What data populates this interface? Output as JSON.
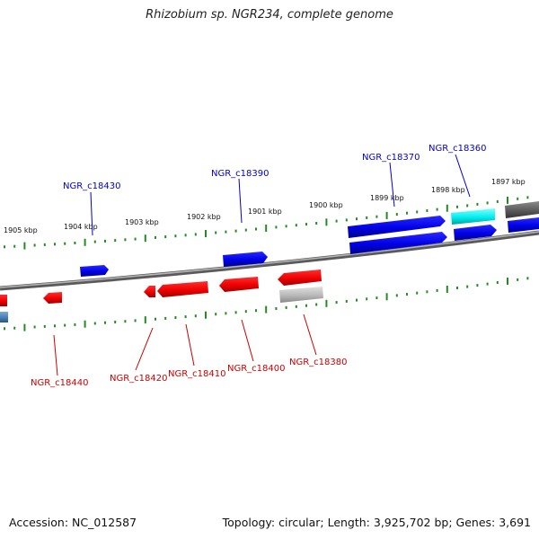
{
  "header": {
    "title": "Rhizobium sp. NGR234, complete genome"
  },
  "footer": {
    "accession": "Accession: NC_012587",
    "topology": "Topology: circular; Length: 3,925,702 bp; Genes: 3,691"
  },
  "colors": {
    "forward_gene": "#0000ee",
    "reverse_gene": "#ee0000",
    "cyan_gene": "#00eeee",
    "gray_gene": "#bbbbbb",
    "dark_gray_gene": "#555555",
    "steel_gene": "#4682b4",
    "forward_label": "#0000cc",
    "reverse_label": "#cc0000",
    "tick": "#228b22",
    "backbone": "#808080"
  },
  "ruler": {
    "ticks": [
      {
        "label": "1905 kbp"
      },
      {
        "label": "1904 kbp"
      },
      {
        "label": "1903 kbp"
      },
      {
        "label": "1902 kbp"
      },
      {
        "label": "1901 kbp"
      },
      {
        "label": "1900 kbp"
      },
      {
        "label": "1899 kbp"
      },
      {
        "label": "1898 kbp"
      },
      {
        "label": "1897 kbp"
      }
    ]
  },
  "gene_labels": {
    "forward": [
      "NGR_c18430",
      "NGR_c18390",
      "NGR_c18370",
      "NGR_c18360"
    ],
    "reverse": [
      "NGR_c18440",
      "NGR_c18420",
      "NGR_c18410",
      "NGR_c18400",
      "NGR_c18380"
    ]
  }
}
